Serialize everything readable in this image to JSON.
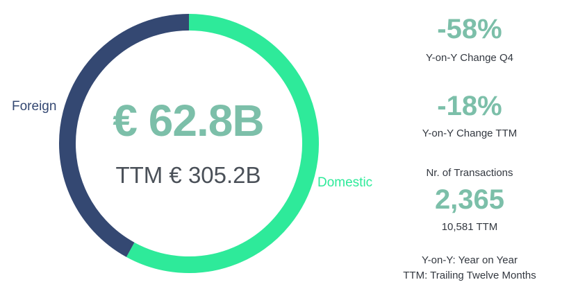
{
  "colors": {
    "foreign": "#344872",
    "domestic": "#2eea9a",
    "accent_text": "#7cbfa9",
    "dark_text": "#4a5058"
  },
  "chart_data": {
    "type": "pie",
    "style": "donut",
    "slices": [
      {
        "label": "Domestic",
        "value": 58,
        "color": "#2eea9a"
      },
      {
        "label": "Foreign",
        "value": 42,
        "color": "#344872"
      }
    ],
    "center_value": "€ 62.8B",
    "center_subtitle": "TTM € 305.2B"
  },
  "kpis": [
    {
      "value": "-58%",
      "caption": "Y-on-Y Change Q4"
    },
    {
      "value": "-18%",
      "caption": "Y-on-Y Change TTM"
    }
  ],
  "transactions": {
    "title": "Nr. of Transactions",
    "value": "2,365",
    "ttm": "10,581 TTM"
  },
  "notes": [
    "Y-on-Y: Year on Year",
    "TTM: Trailing Twelve Months"
  ]
}
